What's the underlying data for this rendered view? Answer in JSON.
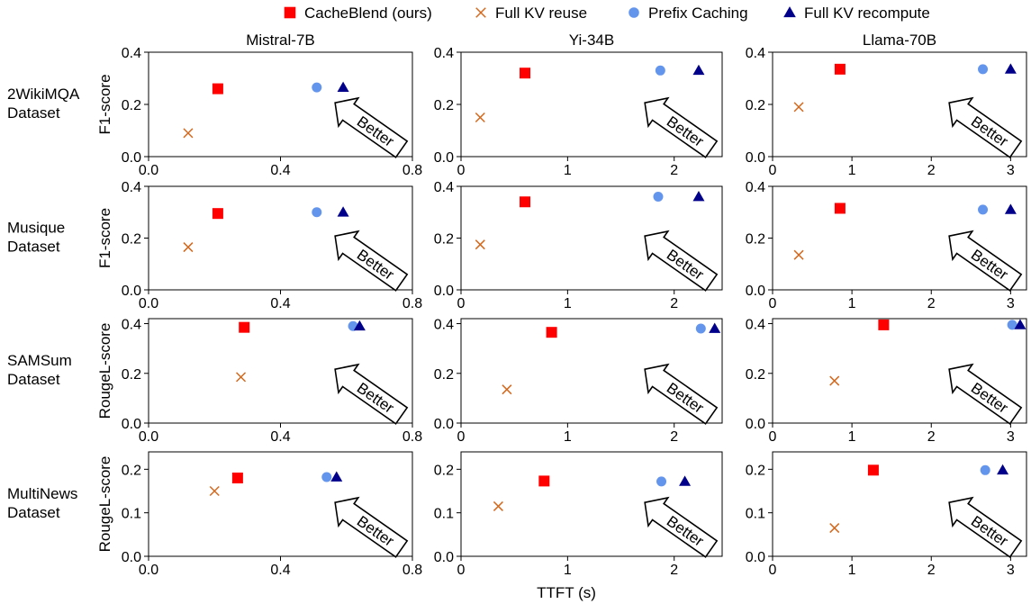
{
  "legend": {
    "placement": "top-center",
    "entries": [
      {
        "key": "cacheblend",
        "label": "CacheBlend (ours)",
        "marker": "square",
        "color": "#ff0000"
      },
      {
        "key": "fullkv_reuse",
        "label": "Full KV reuse",
        "marker": "x",
        "color": "#d2691e"
      },
      {
        "key": "prefix",
        "label": "Prefix Caching",
        "marker": "circle",
        "color": "#6495ed"
      },
      {
        "key": "recompute",
        "label": "Full KV recompute",
        "marker": "triangle",
        "color": "#00008b"
      }
    ]
  },
  "shared_xlabel": "TTFT (s)",
  "arrow_label": "Better",
  "models": [
    "Mistral-7B",
    "Yi-34B",
    "Llama-70B"
  ],
  "datasets": [
    {
      "label_lines": [
        "2WikiMQA",
        "Dataset"
      ],
      "ylabel": "F1-score",
      "ylim": [
        0,
        0.4
      ],
      "yticks": [
        0.0,
        0.2,
        0.4
      ],
      "ytick_labels": [
        "0.0",
        "0.2",
        "0.4"
      ]
    },
    {
      "label_lines": [
        "Musique",
        "Dataset"
      ],
      "ylabel": "F1-score",
      "ylim": [
        0,
        0.4
      ],
      "yticks": [
        0.0,
        0.2,
        0.4
      ],
      "ytick_labels": [
        "0.0",
        "0.2",
        "0.4"
      ]
    },
    {
      "label_lines": [
        "SAMSum",
        "Dataset"
      ],
      "ylabel": "RougeL-score",
      "ylim": [
        0,
        0.42
      ],
      "yticks": [
        0.0,
        0.2,
        0.4
      ],
      "ytick_labels": [
        "0.0",
        "0.2",
        "0.4"
      ]
    },
    {
      "label_lines": [
        "MultiNews",
        "Dataset"
      ],
      "ylabel": "RougeL-score",
      "ylim": [
        0,
        0.24
      ],
      "yticks": [
        0.0,
        0.1,
        0.2
      ],
      "ytick_labels": [
        "0.0",
        "0.1",
        "0.2"
      ]
    }
  ],
  "chart_data": [
    {
      "type": "scatter",
      "model": "Mistral-7B",
      "dataset": "2WikiMQA",
      "xlim": [
        0,
        0.8
      ],
      "ylim": [
        0,
        0.4
      ],
      "xticks": [
        0.0,
        0.4,
        0.8
      ],
      "xtick_labels": [
        "0.0",
        "0.4",
        "0.8"
      ],
      "series": [
        {
          "key": "cacheblend",
          "x": [
            0.21
          ],
          "y": [
            0.26
          ]
        },
        {
          "key": "fullkv_reuse",
          "x": [
            0.12
          ],
          "y": [
            0.09
          ]
        },
        {
          "key": "prefix",
          "x": [
            0.51
          ],
          "y": [
            0.265
          ]
        },
        {
          "key": "recompute",
          "x": [
            0.59
          ],
          "y": [
            0.265
          ]
        }
      ]
    },
    {
      "type": "scatter",
      "model": "Yi-34B",
      "dataset": "2WikiMQA",
      "xlim": [
        0,
        2.45
      ],
      "ylim": [
        0,
        0.4
      ],
      "xticks": [
        0,
        1,
        2
      ],
      "xtick_labels": [
        "0",
        "1",
        "2"
      ],
      "series": [
        {
          "key": "cacheblend",
          "x": [
            0.6
          ],
          "y": [
            0.32
          ]
        },
        {
          "key": "fullkv_reuse",
          "x": [
            0.18
          ],
          "y": [
            0.15
          ]
        },
        {
          "key": "prefix",
          "x": [
            1.87
          ],
          "y": [
            0.33
          ]
        },
        {
          "key": "recompute",
          "x": [
            2.23
          ],
          "y": [
            0.33
          ]
        }
      ]
    },
    {
      "type": "scatter",
      "model": "Llama-70B",
      "dataset": "2WikiMQA",
      "xlim": [
        0,
        3.2
      ],
      "ylim": [
        0,
        0.4
      ],
      "xticks": [
        0,
        1,
        2,
        3
      ],
      "xtick_labels": [
        "0",
        "1",
        "2",
        "3"
      ],
      "series": [
        {
          "key": "cacheblend",
          "x": [
            0.85
          ],
          "y": [
            0.335
          ]
        },
        {
          "key": "fullkv_reuse",
          "x": [
            0.33
          ],
          "y": [
            0.19
          ]
        },
        {
          "key": "prefix",
          "x": [
            2.65
          ],
          "y": [
            0.335
          ]
        },
        {
          "key": "recompute",
          "x": [
            3.0
          ],
          "y": [
            0.335
          ]
        }
      ]
    },
    {
      "type": "scatter",
      "model": "Mistral-7B",
      "dataset": "Musique",
      "xlim": [
        0,
        0.8
      ],
      "ylim": [
        0,
        0.4
      ],
      "xticks": [
        0.0,
        0.4,
        0.8
      ],
      "xtick_labels": [
        "0.0",
        "0.4",
        "0.8"
      ],
      "series": [
        {
          "key": "cacheblend",
          "x": [
            0.21
          ],
          "y": [
            0.295
          ]
        },
        {
          "key": "fullkv_reuse",
          "x": [
            0.12
          ],
          "y": [
            0.165
          ]
        },
        {
          "key": "prefix",
          "x": [
            0.51
          ],
          "y": [
            0.3
          ]
        },
        {
          "key": "recompute",
          "x": [
            0.59
          ],
          "y": [
            0.3
          ]
        }
      ]
    },
    {
      "type": "scatter",
      "model": "Yi-34B",
      "dataset": "Musique",
      "xlim": [
        0,
        2.45
      ],
      "ylim": [
        0,
        0.4
      ],
      "xticks": [
        0,
        1,
        2
      ],
      "xtick_labels": [
        "0",
        "1",
        "2"
      ],
      "series": [
        {
          "key": "cacheblend",
          "x": [
            0.6
          ],
          "y": [
            0.34
          ]
        },
        {
          "key": "fullkv_reuse",
          "x": [
            0.18
          ],
          "y": [
            0.175
          ]
        },
        {
          "key": "prefix",
          "x": [
            1.85
          ],
          "y": [
            0.36
          ]
        },
        {
          "key": "recompute",
          "x": [
            2.23
          ],
          "y": [
            0.36
          ]
        }
      ]
    },
    {
      "type": "scatter",
      "model": "Llama-70B",
      "dataset": "Musique",
      "xlim": [
        0,
        3.2
      ],
      "ylim": [
        0,
        0.4
      ],
      "xticks": [
        0,
        1,
        2,
        3
      ],
      "xtick_labels": [
        "0",
        "1",
        "2",
        "3"
      ],
      "series": [
        {
          "key": "cacheblend",
          "x": [
            0.85
          ],
          "y": [
            0.315
          ]
        },
        {
          "key": "fullkv_reuse",
          "x": [
            0.33
          ],
          "y": [
            0.135
          ]
        },
        {
          "key": "prefix",
          "x": [
            2.65
          ],
          "y": [
            0.31
          ]
        },
        {
          "key": "recompute",
          "x": [
            3.0
          ],
          "y": [
            0.31
          ]
        }
      ]
    },
    {
      "type": "scatter",
      "model": "Mistral-7B",
      "dataset": "SAMSum",
      "xlim": [
        0,
        0.8
      ],
      "ylim": [
        0,
        0.42
      ],
      "xticks": [
        0.0,
        0.4,
        0.8
      ],
      "xtick_labels": [
        "0.0",
        "0.4",
        "0.8"
      ],
      "series": [
        {
          "key": "cacheblend",
          "x": [
            0.29
          ],
          "y": [
            0.385
          ]
        },
        {
          "key": "fullkv_reuse",
          "x": [
            0.28
          ],
          "y": [
            0.185
          ]
        },
        {
          "key": "prefix",
          "x": [
            0.62
          ],
          "y": [
            0.39
          ]
        },
        {
          "key": "recompute",
          "x": [
            0.64
          ],
          "y": [
            0.39
          ]
        }
      ]
    },
    {
      "type": "scatter",
      "model": "Yi-34B",
      "dataset": "SAMSum",
      "xlim": [
        0,
        2.45
      ],
      "ylim": [
        0,
        0.42
      ],
      "xticks": [
        0,
        1,
        2
      ],
      "xtick_labels": [
        "0",
        "1",
        "2"
      ],
      "series": [
        {
          "key": "cacheblend",
          "x": [
            0.85
          ],
          "y": [
            0.365
          ]
        },
        {
          "key": "fullkv_reuse",
          "x": [
            0.43
          ],
          "y": [
            0.135
          ]
        },
        {
          "key": "prefix",
          "x": [
            2.25
          ],
          "y": [
            0.38
          ]
        },
        {
          "key": "recompute",
          "x": [
            2.38
          ],
          "y": [
            0.38
          ]
        }
      ]
    },
    {
      "type": "scatter",
      "model": "Llama-70B",
      "dataset": "SAMSum",
      "xlim": [
        0,
        3.2
      ],
      "ylim": [
        0,
        0.42
      ],
      "xticks": [
        0,
        1,
        2,
        3
      ],
      "xtick_labels": [
        "0",
        "1",
        "2",
        "3"
      ],
      "series": [
        {
          "key": "cacheblend",
          "x": [
            1.4
          ],
          "y": [
            0.395
          ]
        },
        {
          "key": "fullkv_reuse",
          "x": [
            0.78
          ],
          "y": [
            0.17
          ]
        },
        {
          "key": "prefix",
          "x": [
            3.02
          ],
          "y": [
            0.395
          ]
        },
        {
          "key": "recompute",
          "x": [
            3.12
          ],
          "y": [
            0.395
          ]
        }
      ]
    },
    {
      "type": "scatter",
      "model": "Mistral-7B",
      "dataset": "MultiNews",
      "xlim": [
        0,
        0.8
      ],
      "ylim": [
        0,
        0.24
      ],
      "xticks": [
        0.0,
        0.4,
        0.8
      ],
      "xtick_labels": [
        "0.0",
        "0.4",
        "0.8"
      ],
      "series": [
        {
          "key": "cacheblend",
          "x": [
            0.27
          ],
          "y": [
            0.18
          ]
        },
        {
          "key": "fullkv_reuse",
          "x": [
            0.2
          ],
          "y": [
            0.15
          ]
        },
        {
          "key": "prefix",
          "x": [
            0.54
          ],
          "y": [
            0.182
          ]
        },
        {
          "key": "recompute",
          "x": [
            0.57
          ],
          "y": [
            0.182
          ]
        }
      ]
    },
    {
      "type": "scatter",
      "model": "Yi-34B",
      "dataset": "MultiNews",
      "xlim": [
        0,
        2.45
      ],
      "ylim": [
        0,
        0.24
      ],
      "xticks": [
        0,
        1,
        2
      ],
      "xtick_labels": [
        "0",
        "1",
        "2"
      ],
      "series": [
        {
          "key": "cacheblend",
          "x": [
            0.78
          ],
          "y": [
            0.173
          ]
        },
        {
          "key": "fullkv_reuse",
          "x": [
            0.35
          ],
          "y": [
            0.115
          ]
        },
        {
          "key": "prefix",
          "x": [
            1.88
          ],
          "y": [
            0.172
          ]
        },
        {
          "key": "recompute",
          "x": [
            2.1
          ],
          "y": [
            0.172
          ]
        }
      ]
    },
    {
      "type": "scatter",
      "model": "Llama-70B",
      "dataset": "MultiNews",
      "xlim": [
        0,
        3.2
      ],
      "ylim": [
        0,
        0.24
      ],
      "xticks": [
        0,
        1,
        2,
        3
      ],
      "xtick_labels": [
        "0",
        "1",
        "2",
        "3"
      ],
      "series": [
        {
          "key": "cacheblend",
          "x": [
            1.27
          ],
          "y": [
            0.198
          ]
        },
        {
          "key": "fullkv_reuse",
          "x": [
            0.78
          ],
          "y": [
            0.065
          ]
        },
        {
          "key": "prefix",
          "x": [
            2.68
          ],
          "y": [
            0.198
          ]
        },
        {
          "key": "recompute",
          "x": [
            2.9
          ],
          "y": [
            0.198
          ]
        }
      ]
    }
  ]
}
